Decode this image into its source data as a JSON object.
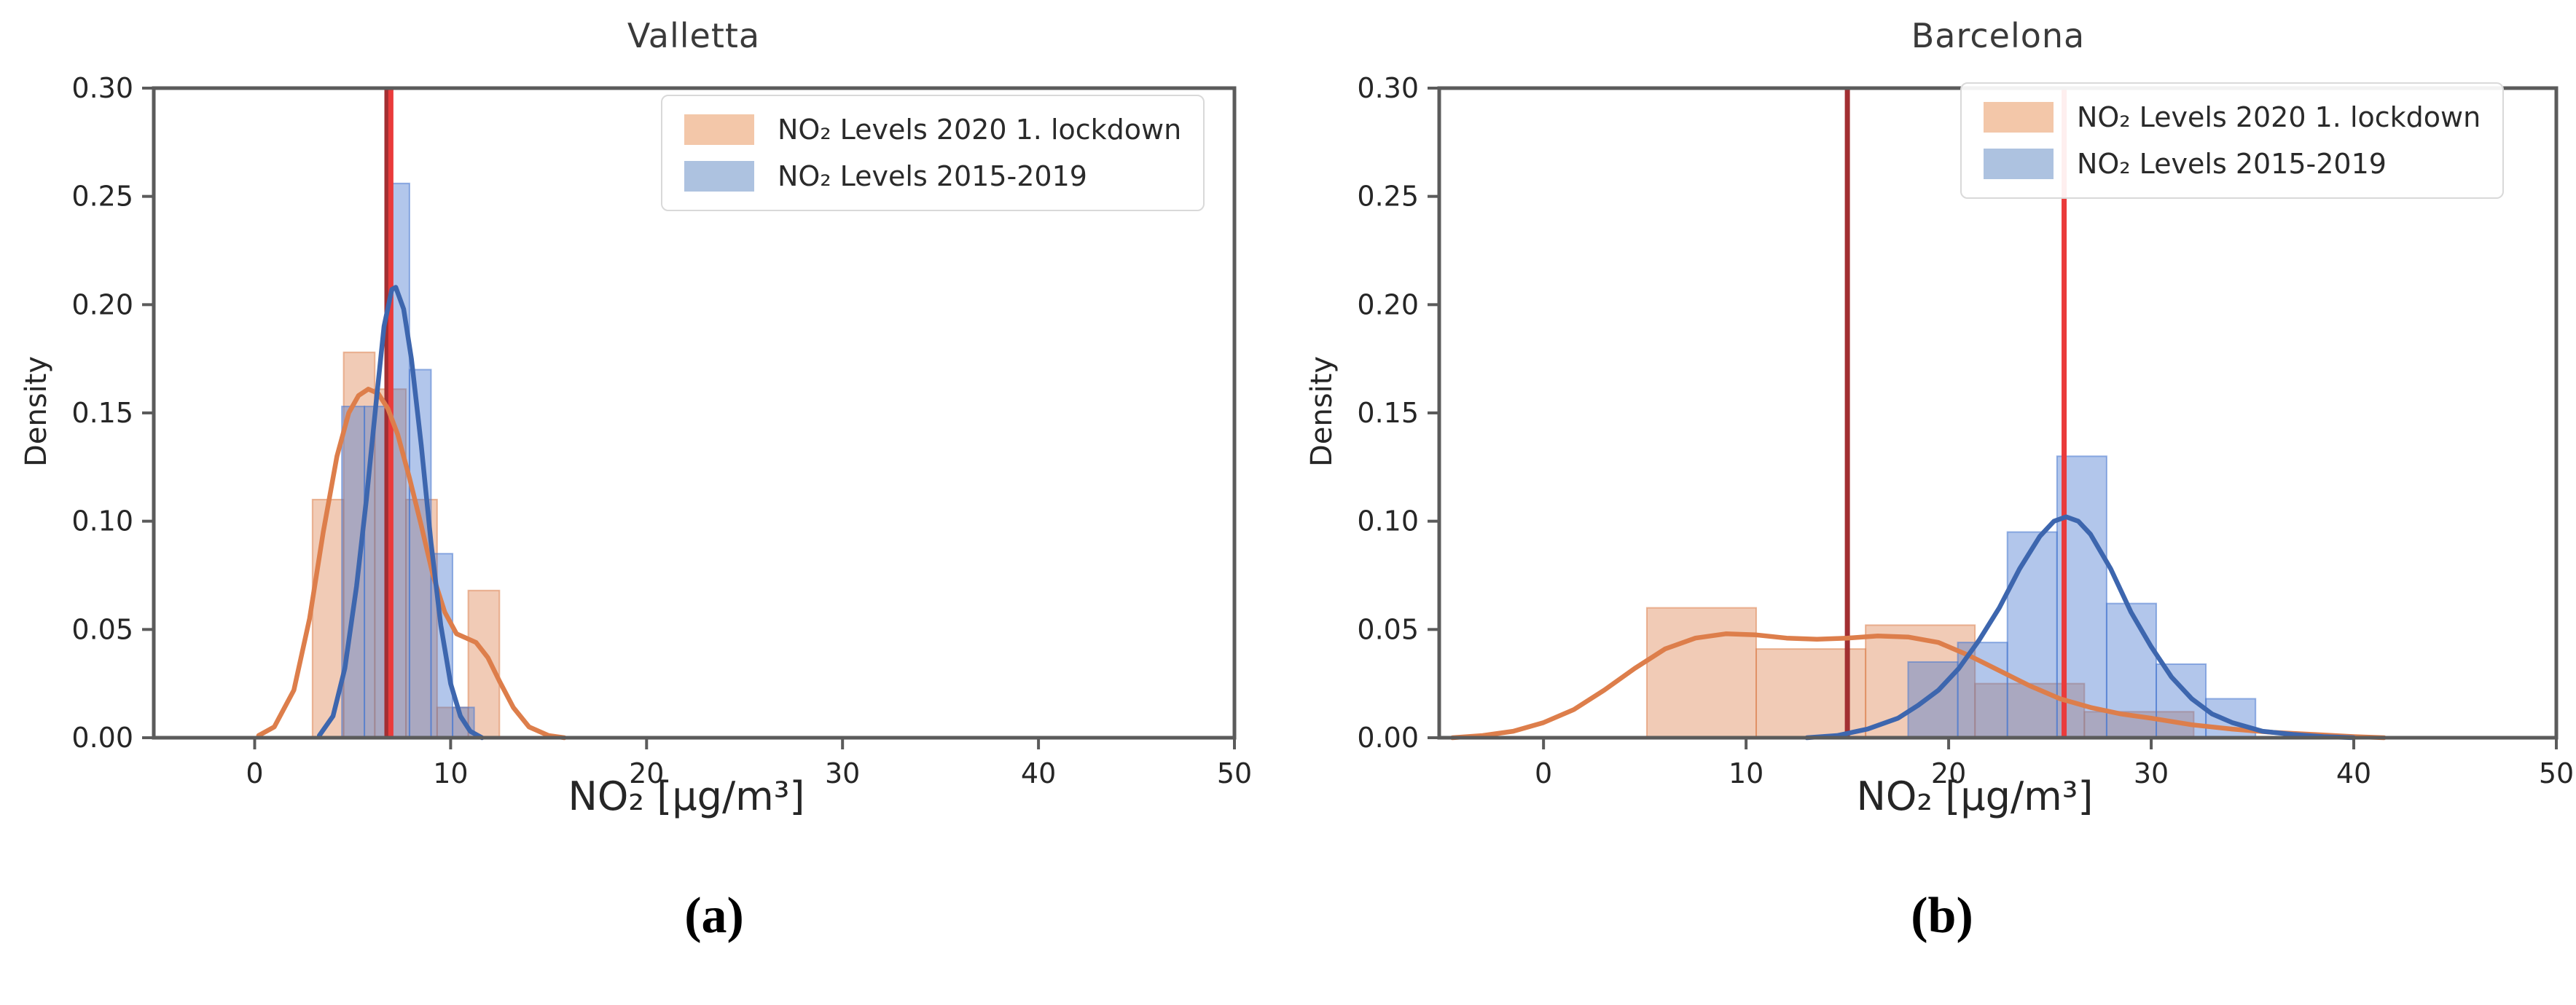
{
  "figure": {
    "background": "#ffffff"
  },
  "colors": {
    "hist_orange": "#dd8452",
    "hist_blue": "#4878d0",
    "hist_fill_opacity": 0.42,
    "kde_orange": "#dd7e4b",
    "kde_blue": "#3d66ae",
    "vline_dark_red": "#a22f32",
    "vline_bright_red": "#ea3b3b",
    "axis": "#5b5b5b",
    "tick_text": "#262626",
    "legend_swatch_orange": "#f3c7a9",
    "legend_swatch_blue": "#adc2e0"
  },
  "legend": {
    "items": [
      {
        "label": "NO₂ Levels 2020 1. lockdown",
        "series": "lockdown-2020",
        "swatch": "legend_swatch_orange"
      },
      {
        "label": "NO₂ Levels 2015-2019",
        "series": "baseline-2015-2019",
        "swatch": "legend_swatch_blue"
      }
    ]
  },
  "chart_data": [
    {
      "type": "bar",
      "subtype": "histogram+kde",
      "title": "Valletta",
      "xlabel": "NO₂ [µg/m³]",
      "ylabel": "Density",
      "caption": "(a)",
      "xlim": [
        -5.15,
        50
      ],
      "ylim": [
        0,
        0.3
      ],
      "xticks": [
        "0",
        "10",
        "20",
        "30",
        "40",
        "50"
      ],
      "xtick_values": [
        0,
        10,
        20,
        30,
        40,
        50
      ],
      "yticks": [
        "0.00",
        "0.05",
        "0.10",
        "0.15",
        "0.20",
        "0.25",
        "0.30"
      ],
      "ytick_values": [
        0,
        0.05,
        0.1,
        0.15,
        0.2,
        0.25,
        0.3
      ],
      "grid": false,
      "legend_position": "upper right",
      "series": [
        {
          "name": "NO₂ Levels 2020 1. lockdown",
          "role": "histogram",
          "color": "orange",
          "bin_edges": [
            2.95,
            4.54,
            6.13,
            7.72,
            9.31,
            10.9,
            12.49
          ],
          "densities": [
            0.11,
            0.178,
            0.161,
            0.11,
            0.014,
            0.068
          ]
        },
        {
          "name": "NO₂ Levels 2015-2019",
          "role": "histogram",
          "color": "blue",
          "bin_edges": [
            4.45,
            5.6,
            6.75,
            7.9,
            9.0,
            10.1,
            11.2
          ],
          "densities": [
            0.153,
            0.153,
            0.256,
            0.17,
            0.085,
            0.014
          ]
        },
        {
          "name": "KDE NO₂ Levels 2020 1. lockdown",
          "role": "kde",
          "color": "orange",
          "points": [
            [
              0.2,
              0.001
            ],
            [
              1,
              0.005
            ],
            [
              2,
              0.022
            ],
            [
              2.8,
              0.055
            ],
            [
              3.5,
              0.095
            ],
            [
              4.2,
              0.13
            ],
            [
              4.8,
              0.15
            ],
            [
              5.3,
              0.158
            ],
            [
              5.8,
              0.161
            ],
            [
              6.3,
              0.159
            ],
            [
              6.8,
              0.152
            ],
            [
              7.3,
              0.14
            ],
            [
              7.9,
              0.12
            ],
            [
              8.5,
              0.098
            ],
            [
              9.1,
              0.075
            ],
            [
              9.7,
              0.058
            ],
            [
              10.3,
              0.048
            ],
            [
              10.8,
              0.046
            ],
            [
              11.3,
              0.044
            ],
            [
              11.9,
              0.037
            ],
            [
              12.5,
              0.026
            ],
            [
              13.2,
              0.014
            ],
            [
              14,
              0.005
            ],
            [
              15,
              0.001
            ],
            [
              15.8,
              0
            ]
          ]
        },
        {
          "name": "KDE NO₂ Levels 2015-2019",
          "role": "kde",
          "color": "blue",
          "points": [
            [
              3.3,
              0.001
            ],
            [
              4,
              0.01
            ],
            [
              4.6,
              0.032
            ],
            [
              5.2,
              0.07
            ],
            [
              5.7,
              0.11
            ],
            [
              6.2,
              0.155
            ],
            [
              6.6,
              0.19
            ],
            [
              7.0,
              0.207
            ],
            [
              7.2,
              0.208
            ],
            [
              7.6,
              0.198
            ],
            [
              8.0,
              0.175
            ],
            [
              8.5,
              0.135
            ],
            [
              9.0,
              0.09
            ],
            [
              9.5,
              0.052
            ],
            [
              10.0,
              0.025
            ],
            [
              10.5,
              0.01
            ],
            [
              11.0,
              0.003
            ],
            [
              11.6,
              0
            ]
          ]
        }
      ],
      "vlines": [
        {
          "x": 6.75,
          "color": "dark_red",
          "name": "median-2020-lockdown"
        },
        {
          "x": 6.95,
          "color": "bright_red",
          "name": "median-2015-2019"
        }
      ]
    },
    {
      "type": "bar",
      "subtype": "histogram+kde",
      "title": "Barcelona",
      "xlabel": "NO₂ [µg/m³]",
      "ylabel": "Density",
      "caption": "(b)",
      "xlim": [
        -5.15,
        50
      ],
      "ylim": [
        0,
        0.3
      ],
      "xticks": [
        "0",
        "10",
        "20",
        "30",
        "40",
        "50"
      ],
      "xtick_values": [
        0,
        10,
        20,
        30,
        40,
        50
      ],
      "yticks": [
        "0.00",
        "0.05",
        "0.10",
        "0.15",
        "0.20",
        "0.25",
        "0.30"
      ],
      "ytick_values": [
        0,
        0.05,
        0.1,
        0.15,
        0.2,
        0.25,
        0.3
      ],
      "grid": false,
      "legend_position": "upper right",
      "series": [
        {
          "name": "NO₂ Levels 2020 1. lockdown",
          "role": "histogram",
          "color": "orange",
          "bin_edges": [
            5.1,
            10.5,
            15.9,
            21.3,
            26.7,
            32.1
          ],
          "densities": [
            0.06,
            0.041,
            0.052,
            0.025,
            0.012
          ]
        },
        {
          "name": "NO₂ Levels 2015-2019",
          "role": "histogram",
          "color": "blue",
          "bin_edges": [
            18.0,
            20.45,
            22.9,
            25.35,
            27.8,
            30.25,
            32.7,
            35.15
          ],
          "densities": [
            0.035,
            0.044,
            0.095,
            0.13,
            0.062,
            0.034,
            0.018
          ]
        },
        {
          "name": "KDE NO₂ Levels 2020 1. lockdown",
          "role": "kde",
          "color": "orange",
          "points": [
            [
              -4.5,
              0
            ],
            [
              -3,
              0.001
            ],
            [
              -1.5,
              0.003
            ],
            [
              0,
              0.007
            ],
            [
              1.5,
              0.013
            ],
            [
              3,
              0.022
            ],
            [
              4.5,
              0.032
            ],
            [
              6,
              0.041
            ],
            [
              7.5,
              0.046
            ],
            [
              9,
              0.048
            ],
            [
              10.5,
              0.0475
            ],
            [
              12,
              0.046
            ],
            [
              13.5,
              0.0455
            ],
            [
              15,
              0.046
            ],
            [
              16.5,
              0.047
            ],
            [
              18,
              0.0465
            ],
            [
              19.5,
              0.044
            ],
            [
              21,
              0.038
            ],
            [
              22.5,
              0.031
            ],
            [
              24,
              0.024
            ],
            [
              25.5,
              0.018
            ],
            [
              27,
              0.014
            ],
            [
              28.5,
              0.011
            ],
            [
              30,
              0.009
            ],
            [
              32,
              0.006
            ],
            [
              34,
              0.004
            ],
            [
              36,
              0.0025
            ],
            [
              38,
              0.0015
            ],
            [
              40,
              0.0005
            ],
            [
              41.5,
              0
            ]
          ]
        },
        {
          "name": "KDE NO₂ Levels 2015-2019",
          "role": "kde",
          "color": "blue",
          "points": [
            [
              13,
              0
            ],
            [
              14.5,
              0.001
            ],
            [
              16,
              0.004
            ],
            [
              17.5,
              0.009
            ],
            [
              18.5,
              0.015
            ],
            [
              19.5,
              0.022
            ],
            [
              20.5,
              0.032
            ],
            [
              21.5,
              0.045
            ],
            [
              22.5,
              0.06
            ],
            [
              23.5,
              0.078
            ],
            [
              24.5,
              0.093
            ],
            [
              25.2,
              0.1
            ],
            [
              25.8,
              0.102
            ],
            [
              26.4,
              0.1
            ],
            [
              27,
              0.094
            ],
            [
              28,
              0.078
            ],
            [
              29,
              0.058
            ],
            [
              30,
              0.042
            ],
            [
              31,
              0.028
            ],
            [
              32,
              0.018
            ],
            [
              33,
              0.011
            ],
            [
              34,
              0.007
            ],
            [
              35.5,
              0.003
            ],
            [
              37,
              0.0015
            ],
            [
              38.5,
              0.0005
            ],
            [
              40,
              0
            ]
          ]
        }
      ],
      "vlines": [
        {
          "x": 15.0,
          "color": "dark_red",
          "name": "median-2020-lockdown"
        },
        {
          "x": 25.7,
          "color": "bright_red",
          "name": "median-2015-2019"
        }
      ]
    }
  ]
}
